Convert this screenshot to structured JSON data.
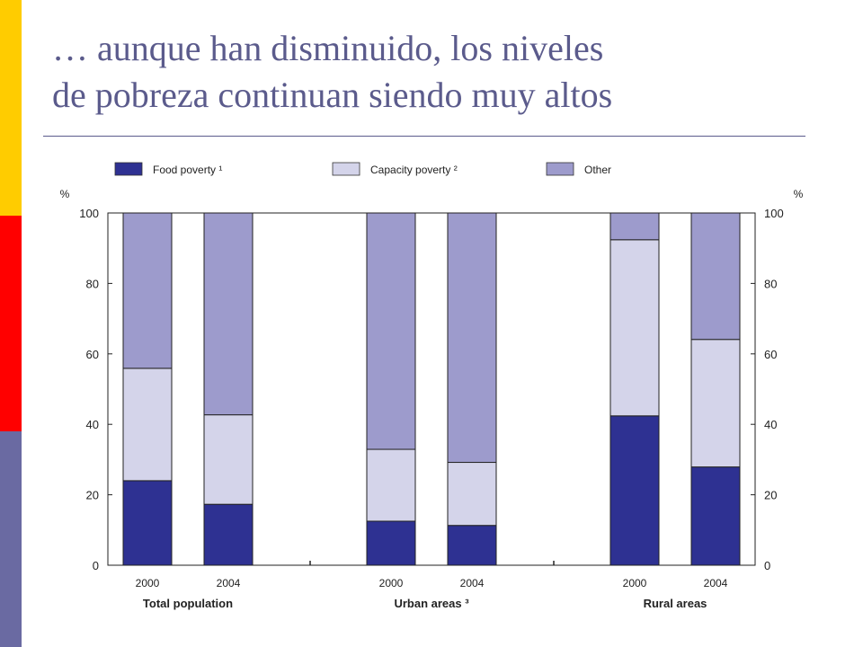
{
  "slide": {
    "title_line1": "… aunque han disminuido, los niveles",
    "title_line2": "de pobreza continuan siendo muy altos"
  },
  "colors": {
    "side_yellow": "#ffcc00",
    "side_red": "#ff0000",
    "side_blue": "#6a6aa2",
    "food": "#2e3192",
    "capacity": "#d4d4ea",
    "other": "#9d9bcc"
  },
  "chart_data": {
    "type": "bar",
    "stacked": true,
    "y_unit": "%",
    "ylim": [
      0,
      100
    ],
    "yticks": [
      0,
      20,
      40,
      60,
      80,
      100
    ],
    "legend": [
      "Food poverty ¹",
      "Capacity poverty ²",
      "Other"
    ],
    "legend_placement": "top",
    "groups": [
      {
        "label": "Total population",
        "categories": [
          "2000",
          "2004"
        ]
      },
      {
        "label": "Urban areas ³",
        "categories": [
          "2000",
          "2004"
        ]
      },
      {
        "label": "Rural areas",
        "categories": [
          "2000",
          "2004"
        ]
      }
    ],
    "series": [
      {
        "name": "Food poverty ¹",
        "values": [
          24,
          17.3,
          12.5,
          11.3,
          42.4,
          27.9
        ]
      },
      {
        "name": "Capacity poverty ²",
        "values": [
          31.9,
          25.4,
          20.4,
          17.9,
          50.0,
          36.2
        ]
      },
      {
        "name": "Other",
        "values": [
          44.1,
          57.3,
          67.1,
          70.8,
          7.6,
          35.9
        ]
      }
    ]
  }
}
